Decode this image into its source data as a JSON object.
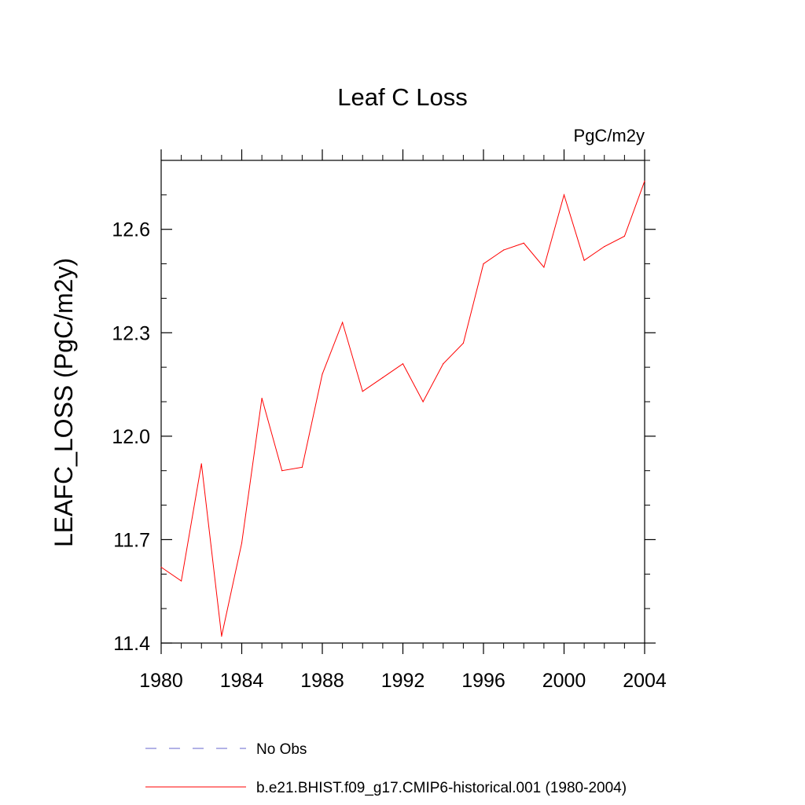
{
  "chart_data": {
    "type": "line",
    "title": "Leaf C Loss",
    "units_label": "PgC/m2y",
    "xlabel": "",
    "ylabel": "LEAFC_LOSS  (PgC/m2y)",
    "xlim": [
      1980,
      2004
    ],
    "ylim": [
      11.4,
      12.8
    ],
    "x_ticks": [
      1980,
      1984,
      1988,
      1992,
      1996,
      2000,
      2004
    ],
    "y_ticks": [
      11.4,
      11.7,
      12.0,
      12.3,
      12.6
    ],
    "y_tick_labels": [
      "11.4",
      "11.7",
      "12.0",
      "12.3",
      "12.6"
    ],
    "grid": false,
    "legend_placement": "bottom",
    "series": [
      {
        "name": "No Obs",
        "style": "dashed",
        "color": "#6666cc",
        "x": [],
        "values": []
      },
      {
        "name": "b.e21.BHIST.f09_g17.CMIP6-historical.001 (1980-2004)",
        "style": "solid",
        "color": "#ff0000",
        "x": [
          1980,
          1981,
          1982,
          1983,
          1984,
          1985,
          1986,
          1987,
          1988,
          1989,
          1990,
          1991,
          1992,
          1993,
          1994,
          1995,
          1996,
          1997,
          1998,
          1999,
          2000,
          2001,
          2002,
          2003,
          2004
        ],
        "values": [
          11.62,
          11.58,
          11.92,
          11.42,
          11.69,
          12.11,
          11.9,
          11.91,
          12.18,
          12.33,
          12.13,
          12.17,
          12.21,
          12.1,
          12.21,
          12.27,
          12.5,
          12.54,
          12.56,
          12.49,
          12.7,
          12.51,
          12.55,
          12.58,
          12.74
        ]
      }
    ]
  }
}
